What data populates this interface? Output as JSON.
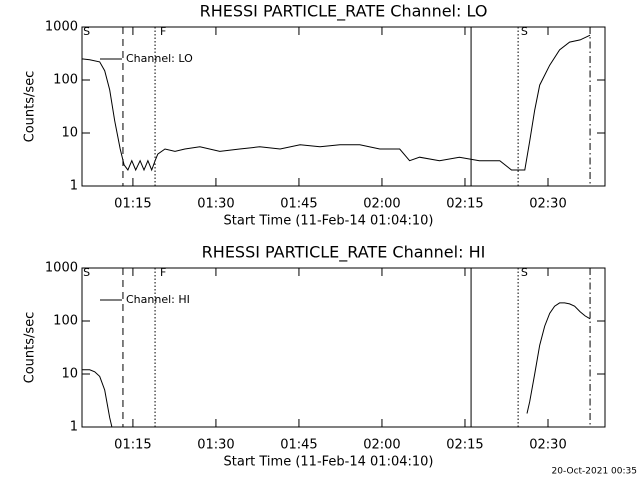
{
  "chart_data": [
    {
      "type": "line",
      "title": "RHESSI PARTICLE_RATE Channel: LO",
      "xlabel": "Start Time (11-Feb-14 01:04:10)",
      "ylabel": "Counts/sec",
      "log_y": true,
      "xlim": [
        65.8,
        160.3
      ],
      "ylim": [
        1,
        1000
      ],
      "xticks": [
        {
          "value": 75,
          "label": "01:15"
        },
        {
          "value": 90,
          "label": "01:30"
        },
        {
          "value": 105,
          "label": "01:45"
        },
        {
          "value": 120,
          "label": "02:00"
        },
        {
          "value": 135,
          "label": "02:15"
        },
        {
          "value": 150,
          "label": "02:30"
        }
      ],
      "yticks": [
        1,
        10,
        100,
        1000
      ],
      "legend": "upper left",
      "series": [
        {
          "name": "Channel: LO",
          "color": "#000000",
          "x": [
            65.8,
            67.2,
            69.0,
            69.9,
            70.8,
            71.7,
            72.7,
            73.4,
            74.1,
            74.8,
            75.5,
            76.3,
            77.0,
            77.7,
            78.4,
            79.0,
            79.5,
            80.8,
            82.6,
            84.4,
            87.1,
            90.7,
            94.3,
            97.9,
            101.6,
            105.2,
            108.8,
            112.4,
            116.0,
            119.6,
            123.2,
            125.0,
            126.8,
            130.4,
            134.0,
            137.6,
            141.3,
            143.4,
            144.5,
            145.8,
            146.7,
            147.6,
            148.5,
            150.3,
            152.1,
            153.9,
            155.8,
            157.6
          ],
          "values": [
            250,
            240,
            220,
            150,
            65,
            17,
            5,
            2.5,
            2,
            3,
            2,
            3,
            2,
            3,
            2,
            3,
            4,
            5,
            4.5,
            5,
            5.5,
            4.5,
            5,
            5.5,
            5,
            6,
            5.5,
            6,
            6,
            5,
            5,
            3,
            3.5,
            3,
            3.5,
            3,
            3,
            2,
            2,
            2,
            7,
            27,
            80,
            190,
            370,
            520,
            570,
            700
          ]
        }
      ],
      "markers": [
        {
          "x": 73.2,
          "style": "dashed"
        },
        {
          "x": 79.0,
          "style": "dotted"
        },
        {
          "x": 136.1,
          "style": "solid"
        },
        {
          "x": 144.6,
          "style": "dotted"
        },
        {
          "x": 157.6,
          "style": "dashdot"
        }
      ],
      "annotations": [
        {
          "text": "S",
          "x": 66.0
        },
        {
          "text": "F",
          "x": 79.9
        },
        {
          "text": "S",
          "x": 145.1
        }
      ]
    },
    {
      "type": "line",
      "title": "RHESSI PARTICLE_RATE Channel: HI",
      "xlabel": "Start Time (11-Feb-14 01:04:10)",
      "ylabel": "Counts/sec",
      "log_y": true,
      "xlim": [
        65.8,
        160.3
      ],
      "ylim": [
        1,
        1000
      ],
      "xticks": [
        {
          "value": 75,
          "label": "01:15"
        },
        {
          "value": 90,
          "label": "01:30"
        },
        {
          "value": 105,
          "label": "01:45"
        },
        {
          "value": 120,
          "label": "02:00"
        },
        {
          "value": 135,
          "label": "02:15"
        },
        {
          "value": 150,
          "label": "02:30"
        }
      ],
      "yticks": [
        1,
        10,
        100,
        1000
      ],
      "legend": "upper left",
      "series": [
        {
          "name": "Channel: HI",
          "color": "#000000",
          "x": [
            65.8,
            67.2,
            68.1,
            69.0,
            69.9,
            70.8,
            71.2,
            null,
            146.2,
            146.7,
            147.6,
            148.5,
            149.4,
            150.3,
            151.2,
            152.1,
            153.0,
            153.9,
            154.8,
            155.8,
            156.7,
            157.6
          ],
          "values": [
            12,
            12,
            11,
            9,
            5,
            1.5,
            1,
            null,
            1.8,
            3,
            10,
            35,
            80,
            140,
            190,
            220,
            220,
            210,
            190,
            150,
            125,
            110
          ]
        }
      ],
      "markers": [
        {
          "x": 73.2,
          "style": "dashed"
        },
        {
          "x": 79.0,
          "style": "dotted"
        },
        {
          "x": 136.1,
          "style": "solid"
        },
        {
          "x": 144.6,
          "style": "dotted"
        },
        {
          "x": 157.6,
          "style": "dashdot"
        }
      ],
      "annotations": [
        {
          "text": "S",
          "x": 66.0
        },
        {
          "text": "F",
          "x": 79.9
        },
        {
          "text": "S",
          "x": 145.1
        }
      ]
    }
  ],
  "footer": "20-Oct-2021 00:35"
}
